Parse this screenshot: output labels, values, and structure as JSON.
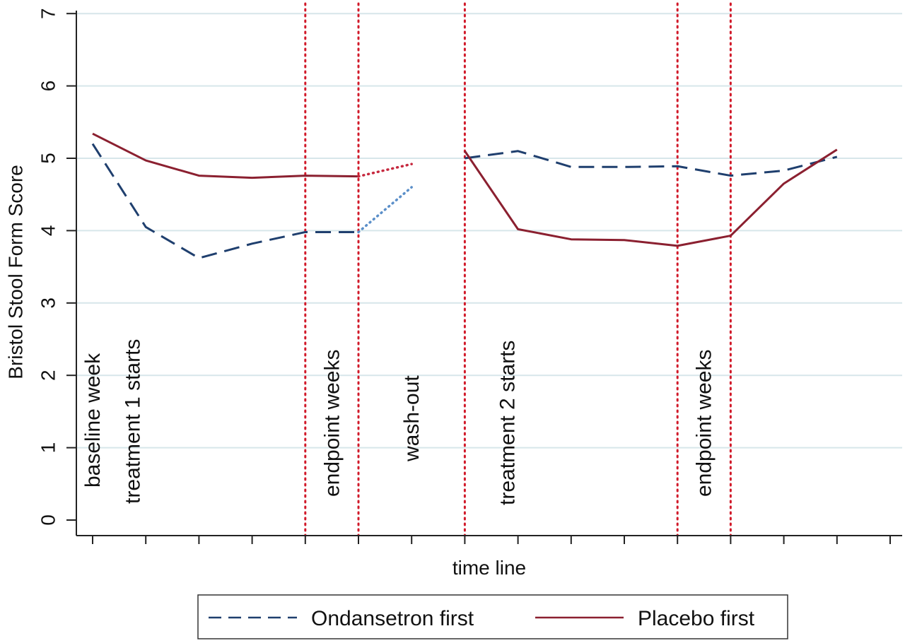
{
  "chart_data": {
    "type": "line",
    "title": "",
    "xlabel": "time line",
    "ylabel": "Bristol Stool Form Score",
    "ylim": [
      0,
      7
    ],
    "yticks": [
      0,
      1,
      2,
      3,
      4,
      5,
      6,
      7
    ],
    "xlim": [
      0,
      15
    ],
    "xticks": [
      0,
      1,
      2,
      3,
      4,
      5,
      6,
      7,
      8,
      9,
      10,
      11,
      12,
      13,
      14,
      15
    ],
    "grid": true,
    "legend_position": "bottom",
    "series": [
      {
        "name": "Ondansetron first",
        "color": "#1f3f6e",
        "style": "dashed",
        "segments": [
          {
            "x": [
              0,
              1,
              2,
              3,
              4,
              5
            ],
            "y": [
              5.2,
              4.05,
              3.62,
              3.82,
              3.98,
              3.98
            ]
          },
          {
            "x": [
              7,
              8,
              9,
              10,
              11,
              12,
              13,
              14
            ],
            "y": [
              5.0,
              5.1,
              4.88,
              4.88,
              4.89,
              4.76,
              4.83,
              5.02
            ]
          }
        ],
        "washout": {
          "x": [
            5,
            6
          ],
          "y": [
            3.98,
            4.6
          ],
          "color": "#5b8fc9",
          "style": "dotted"
        }
      },
      {
        "name": "Placebo first",
        "color": "#8b2030",
        "style": "solid",
        "segments": [
          {
            "x": [
              0,
              1,
              2,
              3,
              4,
              5
            ],
            "y": [
              5.34,
              4.97,
              4.76,
              4.73,
              4.76,
              4.75
            ]
          },
          {
            "x": [
              7,
              8,
              9,
              10,
              11,
              12,
              13,
              14
            ],
            "y": [
              5.1,
              4.02,
              3.88,
              3.87,
              3.79,
              3.93,
              4.65,
              5.12
            ]
          }
        ],
        "washout": {
          "x": [
            5,
            6
          ],
          "y": [
            4.75,
            4.92
          ],
          "color": "#c6283e",
          "style": "dotted"
        }
      }
    ],
    "reference_lines": {
      "x": [
        4,
        5,
        7,
        11,
        12
      ],
      "color": "#d11a2a",
      "style": "dotted"
    },
    "annotations": [
      {
        "text": "baseline week",
        "x": 0
      },
      {
        "text": "treatment 1 starts",
        "x": 0.75
      },
      {
        "text": "endpoint weeks",
        "x": 4.5
      },
      {
        "text": "wash-out",
        "x": 6
      },
      {
        "text": "treatment 2 starts",
        "x": 7.8
      },
      {
        "text": "endpoint weeks",
        "x": 11.5
      }
    ]
  }
}
